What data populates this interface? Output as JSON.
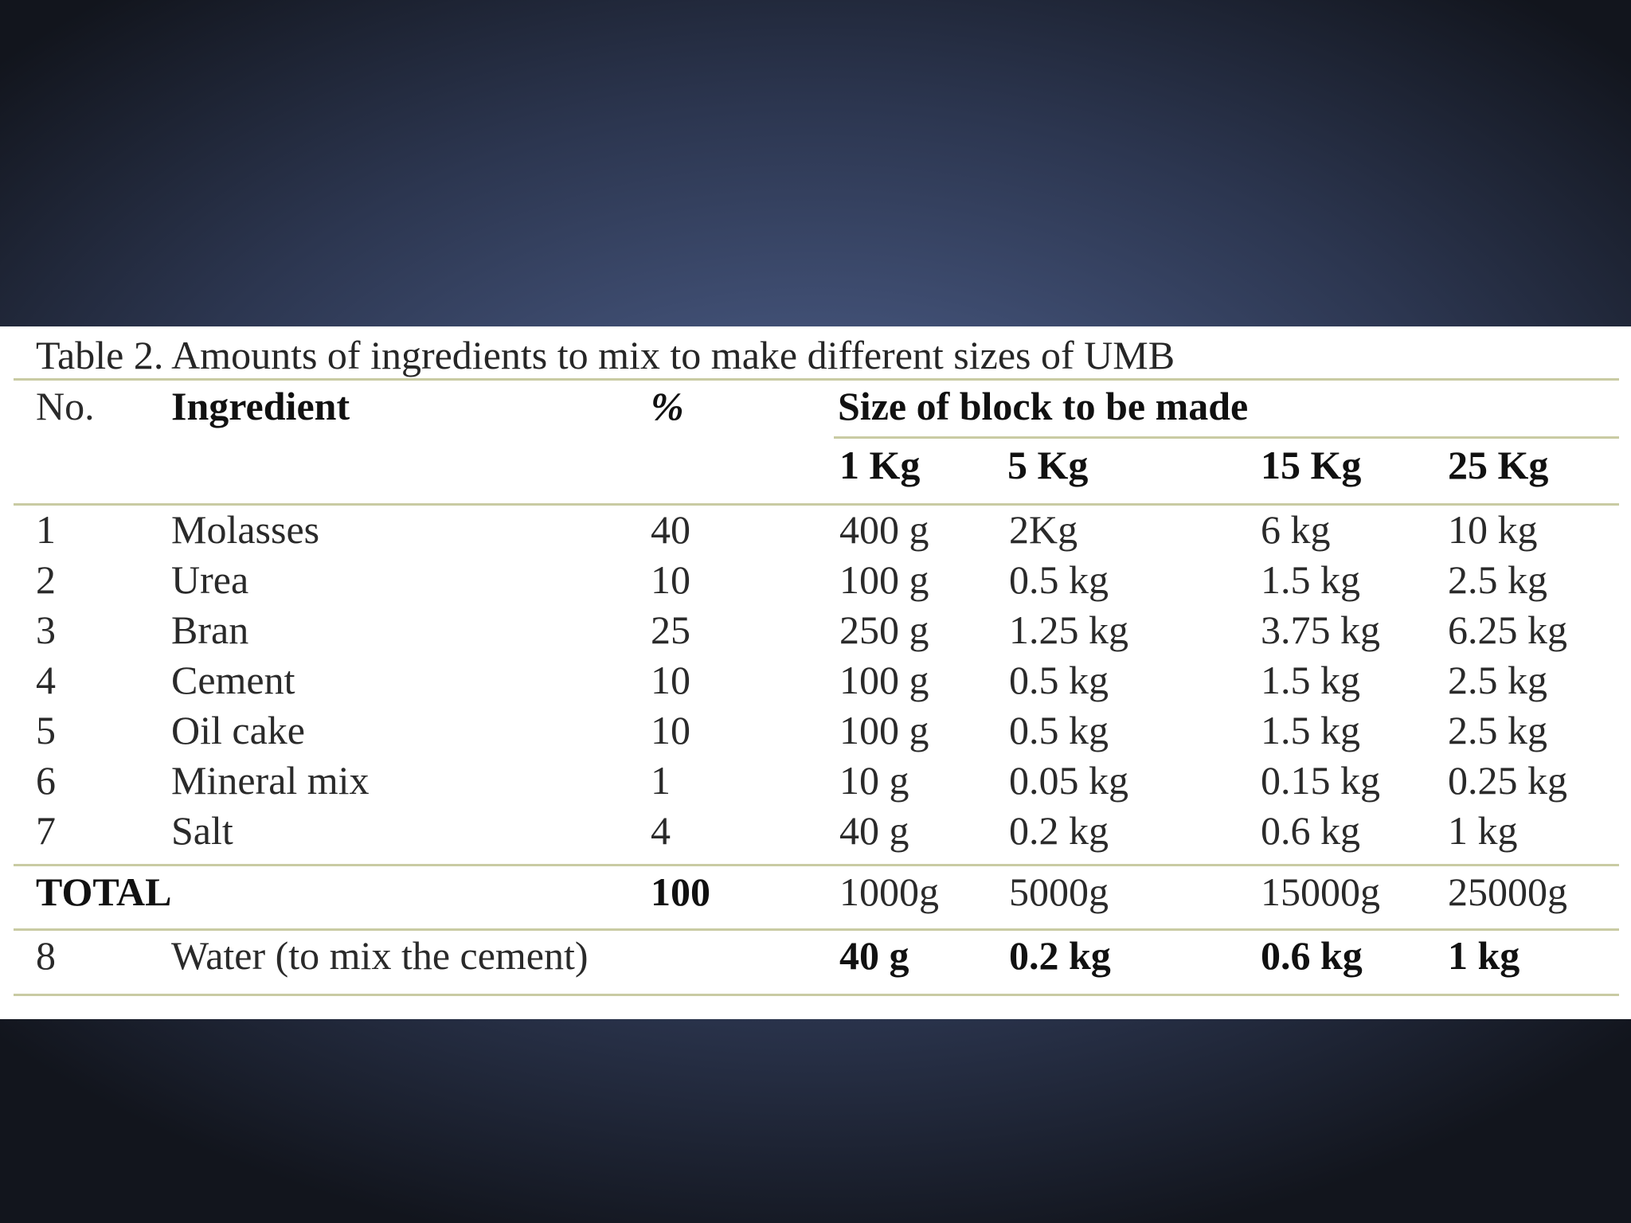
{
  "table": {
    "caption": "Table 2.  Amounts of ingredients to mix to make different sizes of UMB",
    "headers": {
      "no": "No.",
      "ingredient": "Ingredient",
      "percent": "%",
      "size_group": "Size of block to be made",
      "sizes": [
        "1 Kg",
        "5 Kg",
        "15 Kg",
        "25 Kg"
      ]
    },
    "rows": [
      {
        "no": "1",
        "ingredient": "Molasses",
        "percent": "40",
        "amounts": [
          "400 g",
          "2Kg",
          "6 kg",
          "10 kg"
        ]
      },
      {
        "no": "2",
        "ingredient": "Urea",
        "percent": "10",
        "amounts": [
          "100 g",
          "0.5 kg",
          "1.5 kg",
          "2.5 kg"
        ]
      },
      {
        "no": "3",
        "ingredient": "Bran",
        "percent": "25",
        "amounts": [
          "250 g",
          "1.25 kg",
          "3.75 kg",
          "6.25 kg"
        ]
      },
      {
        "no": "4",
        "ingredient": "Cement",
        "percent": "10",
        "amounts": [
          "100 g",
          "0.5 kg",
          "1.5 kg",
          "2.5 kg"
        ]
      },
      {
        "no": "5",
        "ingredient": "Oil cake",
        "percent": "10",
        "amounts": [
          "100 g",
          "0.5 kg",
          "1.5 kg",
          "2.5 kg"
        ]
      },
      {
        "no": "6",
        "ingredient": "Mineral mix",
        "percent": "1",
        "amounts": [
          "10 g",
          "0.05 kg",
          "0.15 kg",
          "0.25 kg"
        ]
      },
      {
        "no": "7",
        "ingredient": "Salt",
        "percent": "4",
        "amounts": [
          "40 g",
          "0.2 kg",
          "0.6 kg",
          "1 kg"
        ]
      }
    ],
    "total": {
      "label": "TOTAL",
      "percent": "100",
      "amounts": [
        "1000g",
        "5000g",
        "15000g",
        "25000g"
      ]
    },
    "water": {
      "no": "8",
      "ingredient": "Water (to mix the cement)",
      "amounts": [
        "40 g",
        "0.2 kg",
        "0.6 kg",
        "1 kg"
      ]
    }
  },
  "colors": {
    "rule": "#c9cba3",
    "background_center": "#55648a",
    "background_edge": "#12151d"
  }
}
